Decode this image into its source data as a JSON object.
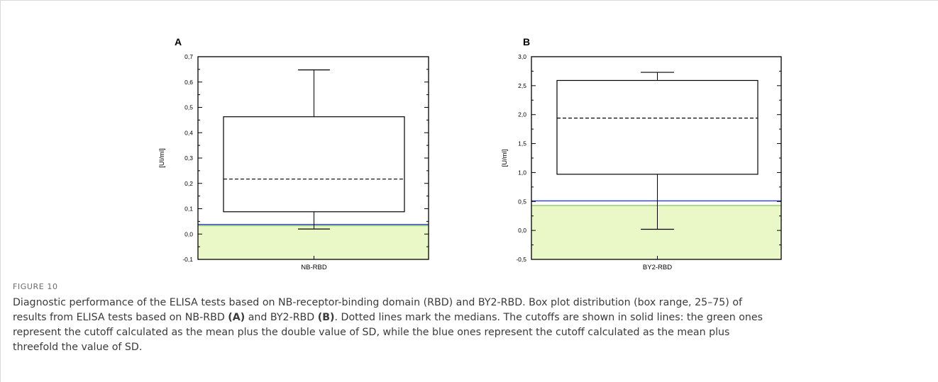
{
  "chart_data": [
    {
      "type": "box",
      "panel": "A",
      "ylabel": "[UI/ml]",
      "categories": [
        "NB-RBD"
      ],
      "ylim": [
        -0.1,
        0.7
      ],
      "yticks": [
        -0.1,
        0.0,
        0.1,
        0.2,
        0.3,
        0.4,
        0.5,
        0.6,
        0.7
      ],
      "ytick_labels": [
        "-0,1",
        "0,0",
        "0,1",
        "0,2",
        "0,3",
        "0,4",
        "0,5",
        "0,6",
        "0,7"
      ],
      "box": {
        "q1": 0.088,
        "median": 0.217,
        "q3": 0.463,
        "whisker_low": 0.02,
        "whisker_high": 0.648
      },
      "cutoff_green": 0.033,
      "cutoff_blue": 0.038,
      "colors": {
        "fill": "#eaf8c7",
        "green": "#7ec850",
        "blue": "#2a3fc6"
      }
    },
    {
      "type": "box",
      "panel": "B",
      "ylabel": "[U/ml]",
      "categories": [
        "BY2-RBD"
      ],
      "ylim": [
        -0.5,
        3.0
      ],
      "yticks": [
        -0.5,
        0.0,
        0.5,
        1.0,
        1.5,
        2.0,
        2.5,
        3.0
      ],
      "ytick_labels": [
        "-0,5",
        "0,0",
        "0,5",
        "1,0",
        "1,5",
        "2,0",
        "2,5",
        "3,0"
      ],
      "box": {
        "q1": 0.97,
        "median": 1.94,
        "q3": 2.59,
        "whisker_low": 0.02,
        "whisker_high": 2.73
      },
      "cutoff_green": 0.43,
      "cutoff_blue": 0.51,
      "colors": {
        "fill": "#eaf8c7",
        "green": "#7ec850",
        "blue": "#2a3fc6"
      }
    }
  ],
  "caption": {
    "figure_label": "FIGURE 10",
    "line1": "Diagnostic performance of the ELISA tests based on NB-receptor-binding domain (RBD) and BY2-RBD. Box plot distribution (box range, 25–75) of",
    "line2_pre": "results from ELISA tests based on NB-RBD ",
    "ref_a": "(A)",
    "line2_mid": " and BY2-RBD ",
    "ref_b": "(B)",
    "line2_post": ". Dotted lines mark the medians. The cutoffs are shown in solid lines: the green ones",
    "line3": "represent the cutoff calculated as the mean plus the double value of SD, while the blue ones represent the cutoff calculated as the mean plus",
    "line4": "threefold the value of SD."
  }
}
